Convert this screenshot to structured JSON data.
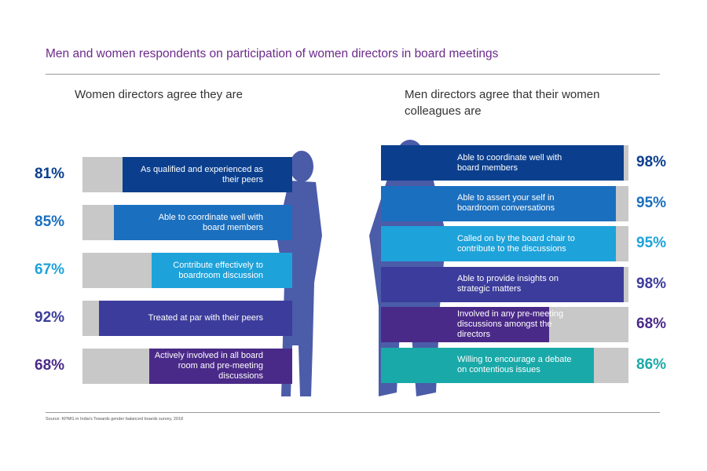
{
  "title": "Men and women respondents on participation of women directors in board meetings",
  "source": "Source: KPMG in India's Towards gender balanced boards survey, 2018",
  "chart_data": [
    {
      "type": "bar",
      "orientation": "horizontal",
      "align": "right",
      "subtitle": "Women directors agree they are",
      "categories": [
        "As qualified and experienced as their peers",
        "Able to coordinate well with board members",
        "Contribute effectively to boardroom discussion",
        "Treated at par with their peers",
        "Actively involved in all board room and pre-meeting discussions"
      ],
      "values": [
        81,
        85,
        67,
        92,
        68
      ],
      "value_labels": [
        "81%",
        "85%",
        "67%",
        "92%",
        "68%"
      ],
      "colors": [
        "#0b3f8e",
        "#1b6fbf",
        "#1ea2da",
        "#3c3c9c",
        "#4a2a88"
      ],
      "xlim": [
        0,
        100
      ]
    },
    {
      "type": "bar",
      "orientation": "horizontal",
      "align": "left",
      "subtitle": "Men directors agree that their women colleagues are",
      "categories": [
        "Able to coordinate well with board members",
        "Able to assert your self in boardroom conversations",
        "Called on by the board chair to contribute to the discussions",
        "Able to provide insights on strategic matters",
        "Involved in any pre-meeting discussions amongst the directors",
        "Willing to encourage a debate on contentious issues"
      ],
      "values": [
        98,
        95,
        95,
        98,
        68,
        86
      ],
      "value_labels": [
        "98%",
        "95%",
        "95%",
        "98%",
        "68%",
        "86%"
      ],
      "colors": [
        "#0b3f8e",
        "#1b6fbf",
        "#1ea2da",
        "#3c3c9c",
        "#4a2a88",
        "#1aa9a9"
      ],
      "xlim": [
        0,
        100
      ]
    }
  ]
}
